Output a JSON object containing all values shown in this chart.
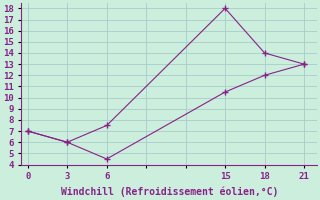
{
  "xlabel": "Windchill (Refroidissement éolien,°C)",
  "line1_x": [
    0,
    3,
    6,
    15,
    18,
    21
  ],
  "line1_y": [
    7,
    6,
    7.5,
    18,
    14,
    13
  ],
  "line2_x": [
    0,
    3,
    6,
    15,
    18,
    21
  ],
  "line2_y": [
    7,
    6,
    4.5,
    10.5,
    12,
    13
  ],
  "line_color": "#882288",
  "bg_color": "#cceedd",
  "grid_color": "#aacccc",
  "xlim": [
    -0.5,
    22
  ],
  "ylim": [
    4,
    18.5
  ],
  "xticks": [
    0,
    3,
    6,
    9,
    12,
    15,
    18,
    21
  ],
  "xtick_labels": [
    "0",
    "3",
    "6",
    "",
    "",
    "15",
    "18",
    "21"
  ],
  "yticks": [
    4,
    5,
    6,
    7,
    8,
    9,
    10,
    11,
    12,
    13,
    14,
    15,
    16,
    17,
    18
  ],
  "xlabel_fontsize": 7,
  "tick_fontsize": 6.5
}
